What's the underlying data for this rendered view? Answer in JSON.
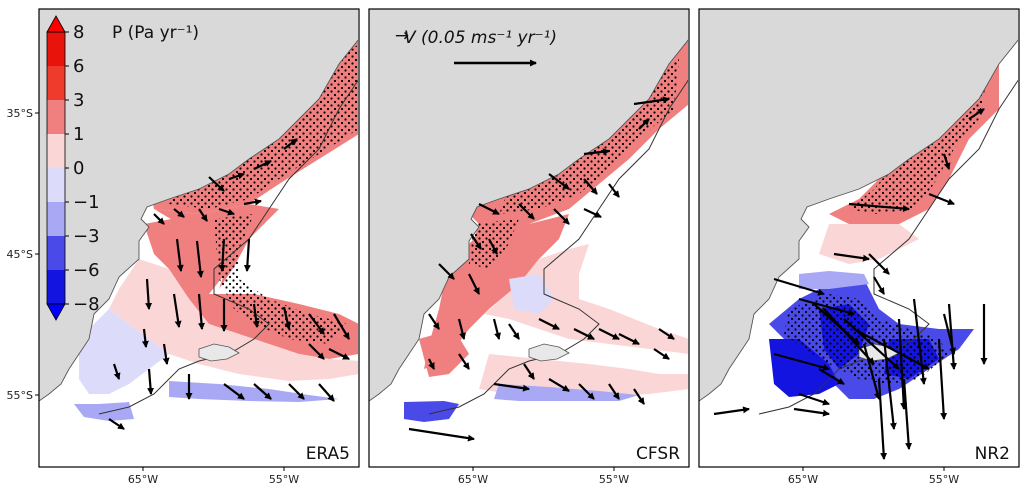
{
  "chart_data": {
    "type": "map",
    "colorbar": {
      "label": "P (Pa yr⁻¹)",
      "ticks": [
        "8",
        "6",
        "3",
        "1",
        "0",
        "−1",
        "−3",
        "−6",
        "−8"
      ],
      "colors": {
        "above_8": "#ff0000",
        "6_8": "#e8140c",
        "3_6": "#ef3b2c",
        "1_3": "#f08080",
        "0_1": "#fbd6d6",
        "m1_0": "#dcdcfa",
        "m3_m1": "#a8a8f5",
        "m6_m3": "#4a4ae8",
        "m8_m6": "#1414e0",
        "below_m8": "#0000ff"
      }
    },
    "vector_key": {
      "label": "V (0.05 ms⁻¹ yr⁻¹)",
      "symbol": "→"
    },
    "yticks": [
      "35°S",
      "45°S",
      "55°S"
    ],
    "xticks": [
      "65°W",
      "55°W"
    ],
    "panels": [
      {
        "name": "ERA5"
      },
      {
        "name": "CFSR"
      },
      {
        "name": "NR2"
      }
    ]
  },
  "colors": {
    "land": "#d9d9d9",
    "ocean": "#ffffff",
    "frame": "#000000",
    "coast": "#555555",
    "isobath": "#333333"
  }
}
